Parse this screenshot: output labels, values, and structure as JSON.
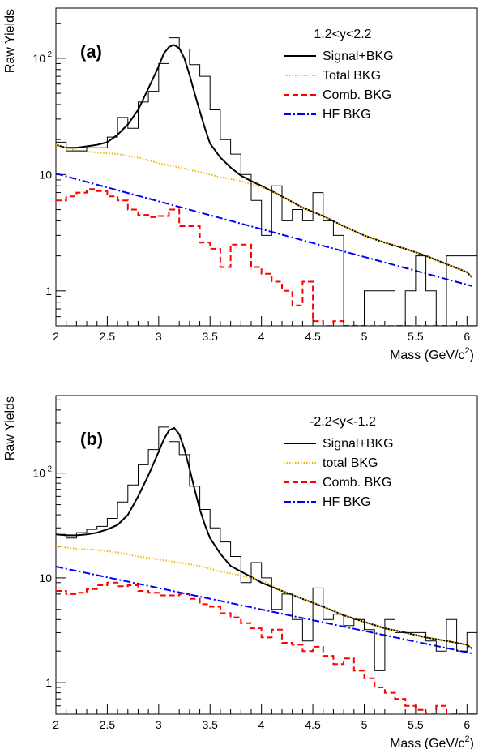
{
  "chart_data": [
    {
      "type": "line",
      "panel_label": "(a)",
      "rapidity_label": "1.2<y<2.2",
      "xlabel": "Mass (GeV/c",
      "xlabel_sup": "2",
      "xlabel_close": ")",
      "ylabel": "Raw Yields",
      "xlim": [
        2,
        6.1
      ],
      "ylim": [
        0.5,
        270
      ],
      "yscale": "log",
      "xticks": [
        2,
        2.5,
        3,
        3.5,
        4,
        4.5,
        5,
        5.5,
        6
      ],
      "xticklabels": [
        "2",
        "2.5",
        "3",
        "3.5",
        "4",
        "4.5",
        "5",
        "5.5",
        "6"
      ],
      "yticks": [
        1,
        10,
        100
      ],
      "yticklabels": [
        "1",
        "10",
        "10",
        "2"
      ],
      "legend_position": "top-right",
      "series": [
        {
          "name": "Signal+BKG",
          "color": "#000000",
          "style": "solid",
          "x": [
            2.0,
            2.1,
            2.2,
            2.3,
            2.4,
            2.5,
            2.6,
            2.7,
            2.8,
            2.9,
            3.0,
            3.05,
            3.1,
            3.15,
            3.2,
            3.25,
            3.3,
            3.35,
            3.4,
            3.45,
            3.5,
            3.6,
            3.7,
            3.8,
            3.9,
            4.0,
            4.2,
            4.4,
            4.6,
            4.8,
            5.0,
            5.2,
            5.4,
            5.6,
            5.8,
            6.0,
            6.05
          ],
          "y": [
            18,
            17,
            17,
            17.5,
            18,
            19,
            22,
            27,
            36,
            55,
            85,
            110,
            125,
            130,
            122,
            100,
            72,
            50,
            35,
            25,
            18.5,
            14,
            11.5,
            9.8,
            8.8,
            8,
            6.5,
            5.2,
            4.4,
            3.6,
            3.0,
            2.6,
            2.3,
            2.0,
            1.7,
            1.45,
            1.3
          ]
        },
        {
          "name": "Total BKG",
          "color": "#f2b705",
          "style": "dotted",
          "x": [
            2.0,
            2.2,
            2.4,
            2.6,
            2.8,
            3.0,
            3.2,
            3.4,
            3.6,
            3.8,
            4.0,
            4.2,
            4.4,
            4.6,
            4.8,
            5.0,
            5.2,
            5.4,
            5.6,
            5.8,
            6.0,
            6.05
          ],
          "y": [
            18,
            16,
            15.5,
            15,
            14,
            12.5,
            11.5,
            10.5,
            9.5,
            8.8,
            7.8,
            6.5,
            5.2,
            4.4,
            3.6,
            3.0,
            2.6,
            2.3,
            2.0,
            1.7,
            1.45,
            1.3
          ]
        },
        {
          "name": "Comb. BKG",
          "color": "#ff0000",
          "style": "dashed",
          "x": [
            2.0,
            2.1,
            2.2,
            2.3,
            2.4,
            2.5,
            2.6,
            2.7,
            2.8,
            2.9,
            3.0,
            3.1,
            3.2,
            3.3,
            3.4,
            3.5,
            3.6,
            3.7,
            3.8,
            3.9,
            4.0,
            4.1,
            4.2,
            4.3,
            4.4,
            4.5,
            4.6,
            4.7,
            4.8,
            4.9,
            5.0,
            5.2,
            5.4,
            5.6,
            5.8,
            6.0,
            6.05
          ],
          "y": [
            6,
            6.5,
            7,
            7.5,
            7.2,
            6.5,
            6,
            5,
            4.5,
            4.3,
            4.4,
            5,
            3.6,
            3.6,
            2.6,
            2.3,
            1.6,
            2.5,
            2.5,
            1.6,
            1.4,
            1.2,
            1.0,
            0.75,
            1.2,
            0.55,
            0.5,
            0.55,
            0.5,
            0.5,
            0.5,
            0.5,
            0.5,
            0.5,
            0.5,
            0.5,
            0.5
          ]
        },
        {
          "name": "HF BKG",
          "color": "#0000ff",
          "style": "dashdot",
          "x": [
            2.0,
            6.05
          ],
          "y": [
            10.2,
            1.1
          ]
        },
        {
          "name": "data",
          "color": "#000000",
          "style": "step",
          "x": [
            2.0,
            2.1,
            2.2,
            2.3,
            2.4,
            2.5,
            2.6,
            2.7,
            2.8,
            2.9,
            3.0,
            3.1,
            3.2,
            3.3,
            3.4,
            3.5,
            3.6,
            3.7,
            3.8,
            3.9,
            4.0,
            4.1,
            4.2,
            4.3,
            4.4,
            4.5,
            4.6,
            4.7,
            4.8,
            4.9,
            5.0,
            5.1,
            5.2,
            5.3,
            5.4,
            5.5,
            5.6,
            5.7,
            5.8,
            5.9,
            6.0
          ],
          "y": [
            19,
            16,
            16,
            17,
            17,
            21,
            31,
            25,
            42,
            52,
            90,
            150,
            120,
            88,
            70,
            36,
            20,
            15,
            10,
            6,
            3,
            8,
            4,
            5,
            4,
            7,
            4,
            3,
            0.5,
            0.5,
            1,
            1,
            1,
            0.5,
            1,
            2,
            1,
            0.5,
            2,
            2,
            2
          ]
        }
      ]
    },
    {
      "type": "line",
      "panel_label": "(b)",
      "rapidity_label": "-2.2<y<-1.2",
      "xlabel": "Mass (GeV/c",
      "xlabel_sup": "2",
      "xlabel_close": ")",
      "ylabel": "Raw Yields",
      "xlim": [
        2,
        6.1
      ],
      "ylim": [
        0.5,
        550
      ],
      "yscale": "log",
      "xticks": [
        2,
        2.5,
        3,
        3.5,
        4,
        4.5,
        5,
        5.5,
        6
      ],
      "xticklabels": [
        "2",
        "2.5",
        "3",
        "3.5",
        "4",
        "4.5",
        "5",
        "5.5",
        "6"
      ],
      "yticks": [
        1,
        10,
        100
      ],
      "yticklabels": [
        "1",
        "10",
        "10",
        "2"
      ],
      "legend_position": "top-right",
      "series": [
        {
          "name": "Signal+BKG",
          "color": "#000000",
          "style": "solid",
          "x": [
            2.0,
            2.1,
            2.2,
            2.3,
            2.4,
            2.5,
            2.6,
            2.7,
            2.8,
            2.9,
            3.0,
            3.05,
            3.1,
            3.15,
            3.2,
            3.25,
            3.3,
            3.35,
            3.4,
            3.45,
            3.5,
            3.6,
            3.7,
            3.8,
            3.9,
            4.0,
            4.2,
            4.4,
            4.6,
            4.8,
            5.0,
            5.2,
            5.4,
            5.6,
            5.8,
            6.0,
            6.05
          ],
          "y": [
            26,
            25.5,
            25.5,
            26,
            27,
            29,
            32,
            40,
            60,
            95,
            160,
            210,
            255,
            270,
            235,
            170,
            110,
            70,
            45,
            32,
            24,
            17,
            13,
            11.5,
            10.2,
            9.0,
            7.5,
            6.3,
            5.3,
            4.4,
            3.8,
            3.3,
            3.0,
            2.7,
            2.5,
            2.3,
            2.1
          ]
        },
        {
          "name": "total BKG",
          "color": "#f2b705",
          "style": "dotted",
          "x": [
            2.0,
            2.2,
            2.4,
            2.6,
            2.8,
            3.0,
            3.2,
            3.4,
            3.6,
            3.8,
            4.0,
            4.2,
            4.4,
            4.6,
            4.8,
            5.0,
            5.2,
            5.4,
            5.6,
            5.8,
            6.0,
            6.05
          ],
          "y": [
            20,
            19,
            18.5,
            17.5,
            16,
            15,
            14,
            13,
            11.5,
            10.5,
            9.5,
            7.5,
            6.3,
            5.3,
            4.4,
            3.8,
            3.3,
            3.0,
            2.7,
            2.5,
            2.3,
            2.1
          ]
        },
        {
          "name": "Comb. BKG",
          "color": "#ff0000",
          "style": "dashed",
          "x": [
            2.0,
            2.1,
            2.2,
            2.3,
            2.4,
            2.5,
            2.6,
            2.7,
            2.8,
            2.9,
            3.0,
            3.1,
            3.2,
            3.3,
            3.4,
            3.5,
            3.6,
            3.7,
            3.8,
            3.9,
            4.0,
            4.1,
            4.2,
            4.3,
            4.4,
            4.5,
            4.6,
            4.7,
            4.8,
            4.9,
            5.0,
            5.1,
            5.2,
            5.3,
            5.4,
            5.5,
            5.6,
            5.7,
            5.8,
            5.9,
            6.0,
            6.05
          ],
          "y": [
            7.5,
            7,
            7.2,
            7.8,
            8.5,
            9,
            8.3,
            8.5,
            7.5,
            7.2,
            6.8,
            6.8,
            7,
            6.3,
            5.6,
            5.3,
            4.6,
            4.2,
            3.7,
            3.3,
            2.7,
            3.2,
            2.4,
            2.3,
            2.0,
            2.2,
            1.8,
            1.5,
            1.7,
            1.3,
            1.1,
            0.9,
            0.8,
            0.7,
            0.6,
            0.55,
            0.5,
            0.6,
            0.5,
            0.5,
            0.5,
            0.5
          ]
        },
        {
          "name": "HF BKG",
          "color": "#0000ff",
          "style": "dashdot",
          "x": [
            2.0,
            6.05
          ],
          "y": [
            12.8,
            1.9
          ]
        },
        {
          "name": "data",
          "color": "#000000",
          "style": "step",
          "x": [
            2.0,
            2.1,
            2.2,
            2.3,
            2.4,
            2.5,
            2.6,
            2.7,
            2.8,
            2.9,
            3.0,
            3.1,
            3.2,
            3.3,
            3.4,
            3.5,
            3.6,
            3.7,
            3.8,
            3.9,
            4.0,
            4.1,
            4.2,
            4.3,
            4.4,
            4.5,
            4.6,
            4.7,
            4.8,
            4.9,
            5.0,
            5.1,
            5.2,
            5.3,
            5.4,
            5.5,
            5.6,
            5.7,
            5.8,
            5.9,
            6.0
          ],
          "y": [
            26,
            24,
            27,
            29,
            31,
            37,
            53,
            77,
            120,
            168,
            275,
            200,
            150,
            75,
            45,
            30,
            22,
            16,
            9,
            14,
            10,
            5,
            7,
            4,
            2.5,
            8,
            4,
            4.5,
            3.5,
            4,
            3.2,
            1.3,
            4,
            3,
            3,
            3,
            2.5,
            2,
            4,
            2,
            3
          ]
        }
      ]
    }
  ]
}
